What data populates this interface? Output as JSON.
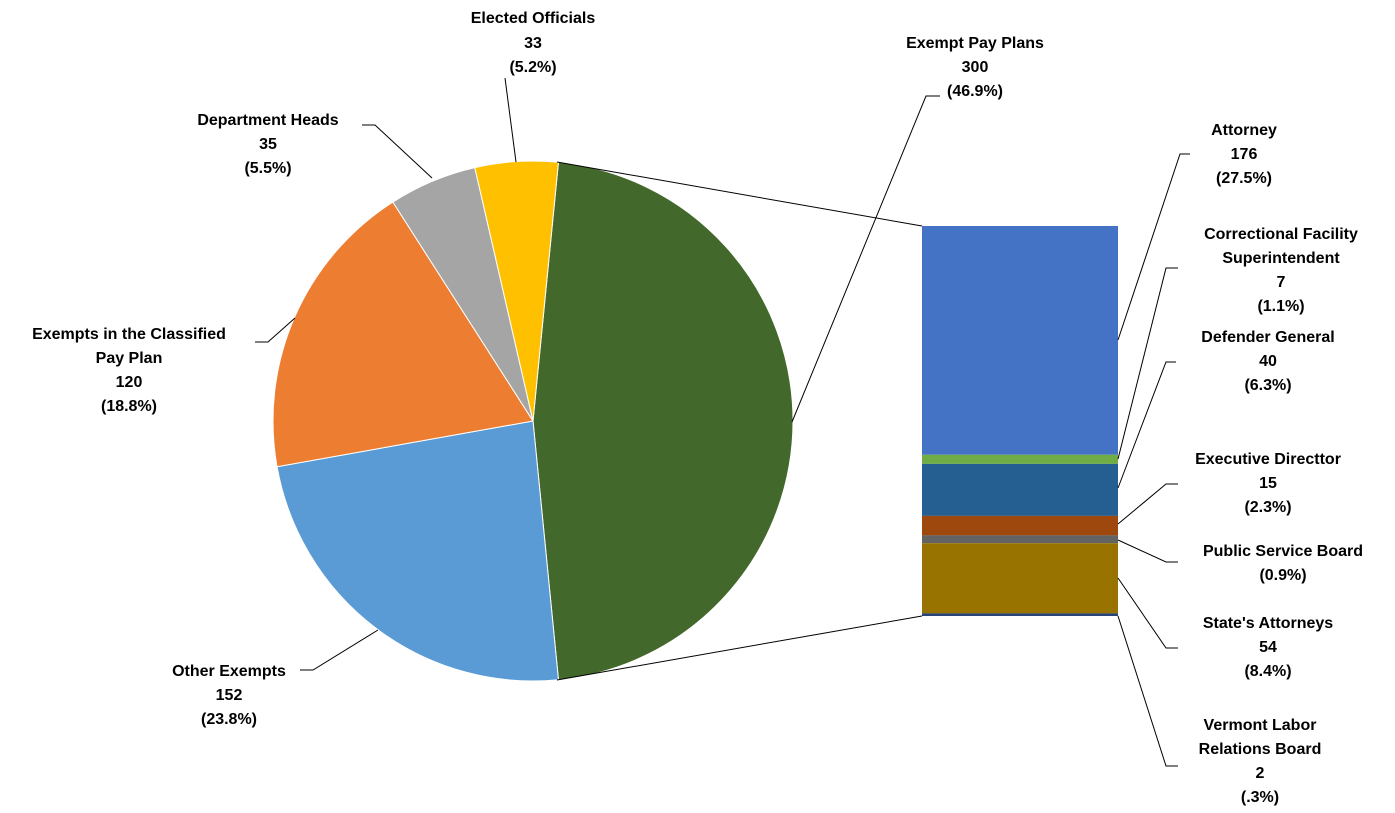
{
  "chart_data": {
    "type": "pie",
    "subtype": "bar-of-pie",
    "title": "",
    "slices": [
      {
        "label": "Exempt Pay Plans",
        "value": 300,
        "pct": "(46.9%)",
        "color": "#43682B"
      },
      {
        "label": "Other Exempts",
        "value": 152,
        "pct": "(23.8%)",
        "color": "#5B9BD5"
      },
      {
        "label": "Exempts in the Classified Pay Plan",
        "value": 120,
        "pct": "(18.8%)",
        "color": "#ED7D31"
      },
      {
        "label": "Department Heads",
        "value": 35,
        "pct": "(5.5%)",
        "color": "#A5A5A5"
      },
      {
        "label": "Elected Officials",
        "value": 33,
        "pct": "(5.2%)",
        "color": "#FFC000"
      }
    ],
    "breakdown_of": "Exempt Pay Plans",
    "breakdown": [
      {
        "label": "Attorney",
        "value": 176,
        "pct": "(27.5%)",
        "color": "#4472C4"
      },
      {
        "label": "Correctional Facility Superintendent",
        "value": 7,
        "pct": "(1.1%)",
        "color": "#70AD47"
      },
      {
        "label": "Defender General",
        "value": 40,
        "pct": "(6.3%)",
        "color": "#255E91"
      },
      {
        "label": "Executive Directtor",
        "value": 15,
        "pct": "(2.3%)",
        "color": "#9E480E"
      },
      {
        "label": "Public Service Board",
        "value": 6,
        "pct": "(0.9%)",
        "color": "#636363"
      },
      {
        "label": "State's Attorneys",
        "value": 54,
        "pct": "(8.4%)",
        "color": "#997300"
      },
      {
        "label": "Vermont Labor Relations Board",
        "value": 2,
        "pct": "(.3%)",
        "color": "#264478"
      }
    ]
  },
  "labels": {
    "elected_officials": {
      "l1": "Elected Officials",
      "value": "33",
      "pct": "(5.2%)"
    },
    "department_heads": {
      "l1": "Department Heads",
      "value": "35",
      "pct": "(5.5%)"
    },
    "exempts_classified": {
      "l1": "Exempts in the Classified",
      "l2": "Pay Plan",
      "value": "120",
      "pct": "(18.8%)"
    },
    "other_exempts": {
      "l1": "Other Exempts",
      "value": "152",
      "pct": "(23.8%)"
    },
    "exempt_pay_plans": {
      "l1": "Exempt Pay Plans",
      "value": "300",
      "pct": "(46.9%)"
    },
    "attorney": {
      "l1": "Attorney",
      "value": "176",
      "pct": "(27.5%)"
    },
    "correctional": {
      "l1": "Correctional Facility",
      "l2": "Superintendent",
      "value": "7",
      "pct": "(1.1%)"
    },
    "defender": {
      "l1": "Defender General",
      "value": "40",
      "pct": "(6.3%)"
    },
    "executive": {
      "l1": "Executive Directtor",
      "value": "15",
      "pct": "(2.3%)"
    },
    "public_service": {
      "l1": "Public Service Board",
      "pct": "(0.9%)"
    },
    "states_attorneys": {
      "l1": "State's Attorneys",
      "value": "54",
      "pct": "(8.4%)"
    },
    "vermont": {
      "l1": "Vermont Labor",
      "l2": "Relations Board",
      "value": "2",
      "pct": "(.3%)"
    }
  }
}
